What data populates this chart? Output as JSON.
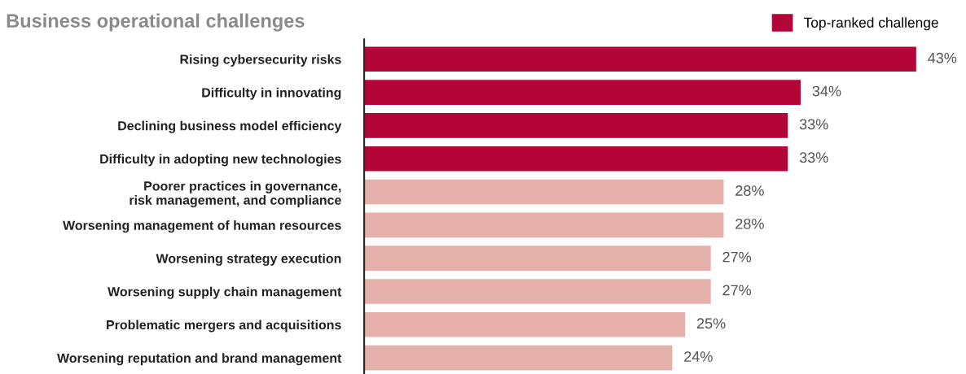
{
  "chart_data": {
    "type": "bar",
    "orientation": "horizontal",
    "title": "Business operational challenges",
    "categories": [
      "Rising cybersecurity risks",
      "Difficulty in innovating",
      "Declining business model efficiency",
      "Difficulty in adopting new technologies",
      "Poorer practices in governance,\nrisk management, and compliance",
      "Worsening management of human resources",
      "Worsening strategy execution",
      "Worsening supply chain management",
      "Problematic mergers and acquisitions",
      "Worsening reputation and brand management"
    ],
    "series": [
      {
        "name": "Top-ranked challenge",
        "color": "#b30538",
        "values": [
          43,
          34,
          33,
          33,
          null,
          null,
          null,
          null,
          null,
          null
        ],
        "value_labels": [
          "43%",
          "34%",
          "33%",
          "33%",
          null,
          null,
          null,
          null,
          null,
          null
        ]
      },
      {
        "color": "#e6b0aa",
        "values": [
          null,
          null,
          null,
          null,
          28,
          28,
          27,
          27,
          25,
          24
        ],
        "value_labels": [
          null,
          null,
          null,
          null,
          "28%",
          "28%",
          "27%",
          "27%",
          "25%",
          "24%"
        ]
      }
    ],
    "tick_labels": "y",
    "grid": false,
    "legend": "top right"
  }
}
